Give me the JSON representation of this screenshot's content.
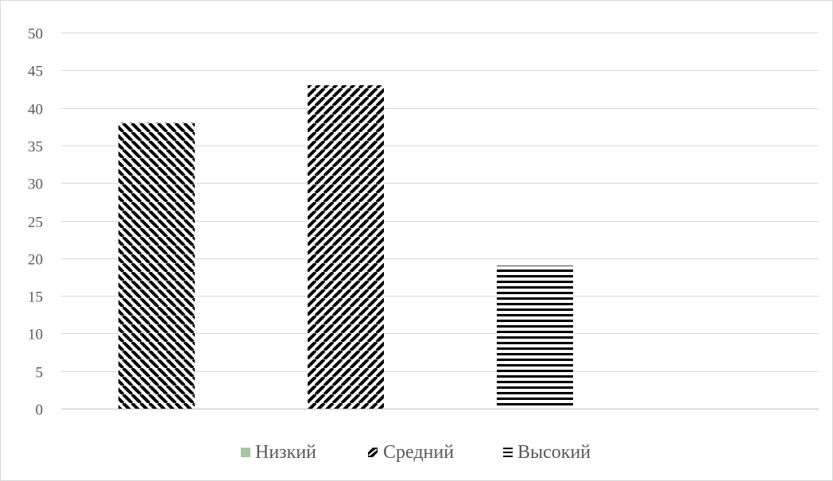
{
  "chart_data": {
    "type": "bar",
    "title": "",
    "xlabel": "",
    "ylabel": "",
    "ylim": [
      0,
      50
    ],
    "y_ticks": [
      0,
      5,
      10,
      15,
      20,
      25,
      30,
      35,
      40,
      45,
      50
    ],
    "grid": true,
    "legend_position": "bottom",
    "series": [
      {
        "name": "Низкий",
        "value": 38,
        "pattern": "diagonal-down",
        "legend_color": "#a9c4a2"
      },
      {
        "name": "Средний",
        "value": 43,
        "pattern": "diagonal-up",
        "legend_color": "#000000"
      },
      {
        "name": "Высокий",
        "value": 19,
        "pattern": "horizontal",
        "legend_color": "#000000"
      }
    ],
    "colors": {
      "grid": "#d9d9d9",
      "axis": "#bfbfbf",
      "text": "#595959",
      "bar": "#000000"
    }
  }
}
